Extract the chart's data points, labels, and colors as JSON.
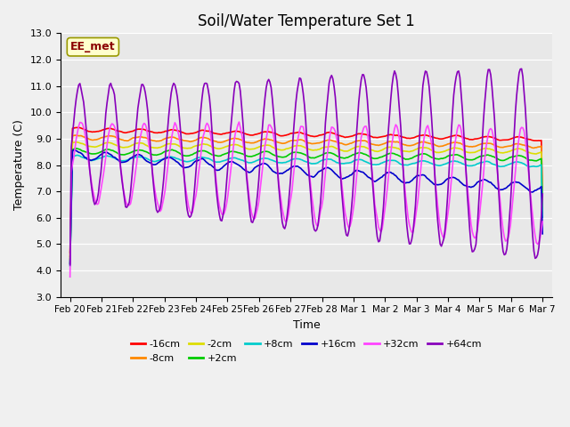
{
  "title": "Soil/Water Temperature Set 1",
  "xlabel": "Time",
  "ylabel": "Temperature (C)",
  "ylim": [
    3.0,
    13.0
  ],
  "yticks": [
    3.0,
    4.0,
    5.0,
    6.0,
    7.0,
    8.0,
    9.0,
    10.0,
    11.0,
    12.0,
    13.0
  ],
  "x_tick_positions": [
    0,
    1,
    2,
    3,
    4,
    5,
    6,
    7,
    8,
    9,
    10,
    11,
    12,
    13,
    14,
    15
  ],
  "x_labels": [
    "Feb 20",
    "Feb 21",
    "Feb 22",
    "Feb 23",
    "Feb 24",
    "Feb 25",
    "Feb 26",
    "Feb 27",
    "Feb 28",
    "Mar 1",
    "Mar 2",
    "Mar 3",
    "Mar 4",
    "Mar 5",
    "Mar 6",
    "Mar 7"
  ],
  "series": [
    {
      "label": "-16cm",
      "color": "#ff0000"
    },
    {
      "label": "-8cm",
      "color": "#ff8800"
    },
    {
      "label": "-2cm",
      "color": "#dddd00"
    },
    {
      "label": "+2cm",
      "color": "#00cc00"
    },
    {
      "label": "+8cm",
      "color": "#00cccc"
    },
    {
      "label": "+16cm",
      "color": "#0000cc"
    },
    {
      "label": "+32cm",
      "color": "#ff44ff"
    },
    {
      "label": "+64cm",
      "color": "#8800bb"
    }
  ],
  "watermark": "EE_met",
  "fig_bg_color": "#f0f0f0",
  "plot_bg_color": "#e8e8e8",
  "grid_color": "#ffffff"
}
